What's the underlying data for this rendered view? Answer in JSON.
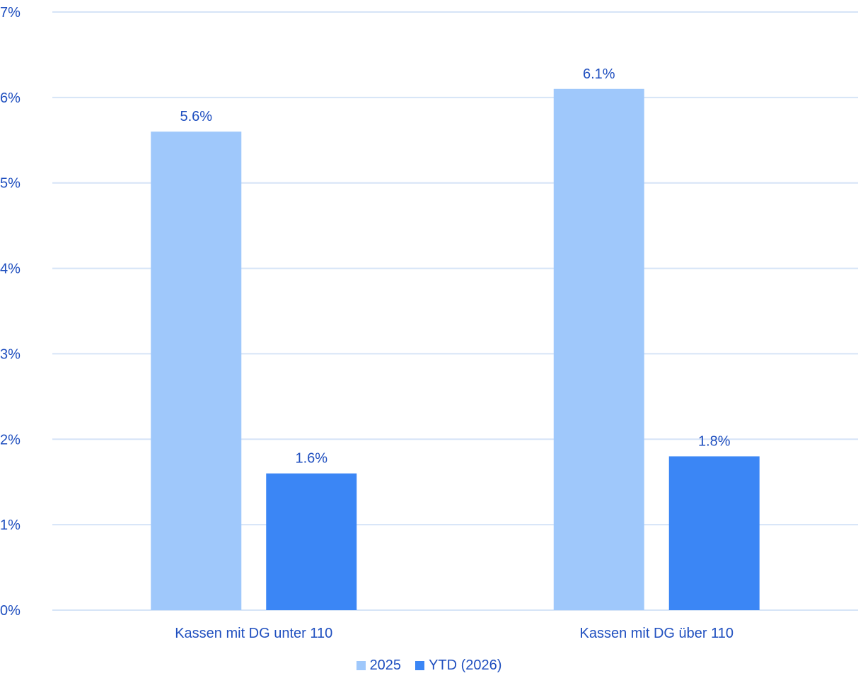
{
  "chart_data": {
    "type": "bar",
    "categories": [
      "Kassen mit DG unter 110",
      "Kassen mit DG über 110"
    ],
    "series": [
      {
        "name": "2025",
        "values": [
          5.6,
          6.1
        ],
        "labels": [
          "5.6%",
          "6.1%"
        ],
        "color": "#9fc8fb"
      },
      {
        "name": "YTD (2026)",
        "values": [
          1.6,
          1.8
        ],
        "labels": [
          "1.6%",
          "1.8%"
        ],
        "color": "#3b86f5"
      }
    ],
    "ylim": [
      0,
      7
    ],
    "yticks": [
      {
        "value": 0,
        "label": "0%"
      },
      {
        "value": 1,
        "label": "1%"
      },
      {
        "value": 2,
        "label": "2%"
      },
      {
        "value": 3,
        "label": "3%"
      },
      {
        "value": 4,
        "label": "4%"
      },
      {
        "value": 5,
        "label": "5%"
      },
      {
        "value": 6,
        "label": "6%"
      },
      {
        "value": 7,
        "label": "7%"
      }
    ],
    "grid": true,
    "legend_position": "bottom",
    "text_color": "#1f4fbf",
    "grid_color": "#d6e4f7"
  }
}
